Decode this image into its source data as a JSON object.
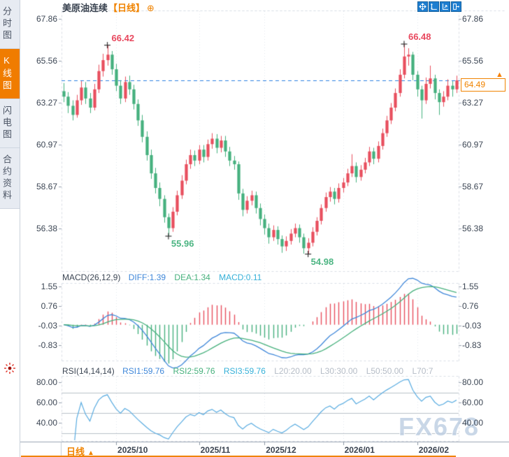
{
  "header": {
    "title": "美原油连续",
    "period": "【日线】",
    "add_icon": "⊕"
  },
  "sidebar": {
    "tabs": [
      {
        "name": "time-chart",
        "label": "分时图",
        "active": false
      },
      {
        "name": "kline-chart",
        "label": "K线图",
        "active": true
      },
      {
        "name": "flash-chart",
        "label": "闪电图",
        "active": false
      },
      {
        "name": "contract-info",
        "label": "合约资料",
        "active": false
      }
    ]
  },
  "toolbar": {
    "buttons": [
      {
        "name": "crosshair-tool-button",
        "icon": "move-icon"
      },
      {
        "name": "y-axis-range-button",
        "icon": "axis-updown-icon"
      },
      {
        "name": "auto-scale-button",
        "icon": "axis-fit-icon"
      },
      {
        "name": "close-chart-button",
        "icon": "exit-icon"
      }
    ]
  },
  "main_chart": {
    "y_labels": [
      67.86,
      65.56,
      63.27,
      60.97,
      58.67,
      56.38
    ],
    "last_price": {
      "value": 64.49,
      "label": "64.49"
    },
    "arrow": "▲",
    "dashed_line_value": 64.49,
    "annotations": [
      {
        "label": "66.42",
        "index": 10,
        "value": 66.42,
        "position": "above",
        "type": "high"
      },
      {
        "label": "55.96",
        "index": 24,
        "value": 55.96,
        "position": "below",
        "type": "low"
      },
      {
        "label": "54.98",
        "index": 56,
        "value": 54.98,
        "position": "below",
        "type": "low"
      },
      {
        "label": "66.48",
        "index": 78,
        "value": 66.48,
        "position": "above",
        "type": "high"
      }
    ]
  },
  "macd": {
    "title": "MACD(26,12,9)",
    "diff": "DIFF:1.39",
    "dea": "DEA:1.34",
    "macd": "MACD:0.11",
    "y_labels": [
      1.55,
      0.76,
      -0.03,
      -0.83
    ]
  },
  "rsi": {
    "title": "RSI(14,14,14)",
    "rsi1": "RSI1:59.76",
    "rsi2": "RSI2:59.76",
    "rsi3": "RSI3:59.76",
    "l20": "L20:20.00",
    "l30": "L30:30.00",
    "l50": "L50:50.00",
    "l70": "L70:7",
    "y_labels": [
      80,
      60,
      40
    ],
    "ref_lines": [
      70,
      50,
      30
    ]
  },
  "x_axis": {
    "labels": [
      "2025/10",
      "2025/11",
      "2025/12",
      "2026/01",
      "2026/02"
    ],
    "tick_indices": [
      12,
      31,
      46,
      64,
      81
    ]
  },
  "footer": {
    "period_label": "日线",
    "arrow": "▲"
  },
  "watermark": "FX678",
  "colors": {
    "up": "#e84f5e",
    "down": "#45b07e",
    "diff": "#3f87d9",
    "dea": "#46b07c",
    "rsi": "#58abe0",
    "dashed": "#2a7fe0",
    "border": "#d9dee6",
    "grid": "#e2e6ec",
    "refline": "#b9c0c9",
    "tick": "#9aa3b0",
    "axisline": "#9aa4b2",
    "sep": "#c5ccd6",
    "cross": "#333333",
    "ann_high": "#e8485e",
    "ann_low": "#4db583",
    "accent": "#f08300"
  },
  "chart_data": {
    "type": "candlestick",
    "symbol": "美原油连续",
    "interval": "日线",
    "ohlc": [
      [
        63.9,
        64.35,
        63.3,
        63.6
      ],
      [
        63.6,
        63.85,
        62.7,
        63.1
      ],
      [
        63.1,
        63.4,
        62.3,
        62.6
      ],
      [
        62.6,
        63.7,
        62.45,
        63.4
      ],
      [
        63.4,
        64.45,
        63.15,
        64.1
      ],
      [
        64.1,
        64.4,
        63.2,
        63.5
      ],
      [
        63.5,
        63.8,
        62.7,
        63.0
      ],
      [
        63.0,
        64.3,
        62.85,
        64.0
      ],
      [
        64.0,
        65.35,
        63.8,
        65.0
      ],
      [
        65.0,
        65.95,
        64.7,
        65.6
      ],
      [
        65.6,
        66.42,
        65.3,
        65.9
      ],
      [
        65.9,
        66.1,
        64.8,
        65.1
      ],
      [
        65.1,
        65.4,
        63.9,
        64.2
      ],
      [
        64.2,
        64.5,
        63.2,
        63.5
      ],
      [
        63.5,
        64.7,
        63.3,
        64.4
      ],
      [
        64.4,
        64.75,
        63.7,
        64.0
      ],
      [
        64.0,
        64.25,
        62.9,
        63.2
      ],
      [
        63.2,
        63.45,
        62.0,
        62.3
      ],
      [
        62.3,
        62.6,
        61.1,
        61.4
      ],
      [
        61.4,
        61.7,
        60.1,
        60.4
      ],
      [
        60.4,
        60.7,
        59.1,
        59.4
      ],
      [
        59.4,
        59.7,
        58.3,
        58.6
      ],
      [
        58.6,
        58.9,
        57.6,
        58.0
      ],
      [
        58.0,
        58.2,
        56.7,
        57.0
      ],
      [
        57.0,
        57.2,
        55.96,
        56.4
      ],
      [
        56.4,
        57.55,
        56.2,
        57.3
      ],
      [
        57.3,
        58.45,
        57.1,
        58.2
      ],
      [
        58.2,
        59.3,
        58.0,
        59.0
      ],
      [
        59.0,
        60.15,
        58.8,
        59.9
      ],
      [
        59.9,
        60.7,
        59.65,
        60.4
      ],
      [
        60.4,
        60.65,
        59.8,
        60.1
      ],
      [
        60.1,
        60.95,
        59.9,
        60.7
      ],
      [
        60.7,
        60.95,
        60.0,
        60.3
      ],
      [
        60.3,
        61.25,
        60.1,
        61.0
      ],
      [
        61.0,
        61.6,
        60.75,
        61.3
      ],
      [
        61.3,
        61.55,
        60.5,
        60.8
      ],
      [
        60.8,
        61.45,
        60.55,
        61.2
      ],
      [
        61.2,
        61.45,
        60.3,
        60.6
      ],
      [
        60.6,
        60.85,
        59.8,
        60.1
      ],
      [
        60.1,
        60.35,
        59.6,
        59.9
      ],
      [
        59.9,
        60.05,
        57.95,
        58.3
      ],
      [
        58.3,
        58.55,
        57.05,
        57.4
      ],
      [
        57.4,
        58.15,
        57.2,
        57.9
      ],
      [
        57.9,
        58.45,
        57.65,
        58.2
      ],
      [
        58.2,
        58.4,
        57.2,
        57.5
      ],
      [
        57.5,
        57.75,
        56.55,
        56.9
      ],
      [
        56.9,
        57.15,
        56.05,
        56.4
      ],
      [
        56.4,
        56.65,
        55.55,
        55.9
      ],
      [
        55.9,
        56.55,
        55.7,
        56.3
      ],
      [
        56.3,
        56.5,
        55.5,
        55.8
      ],
      [
        55.8,
        56.0,
        55.05,
        55.4
      ],
      [
        55.4,
        55.95,
        55.15,
        55.7
      ],
      [
        55.7,
        56.35,
        55.5,
        56.1
      ],
      [
        56.1,
        56.65,
        55.9,
        56.4
      ],
      [
        56.4,
        56.6,
        55.6,
        55.9
      ],
      [
        55.9,
        56.1,
        55.0,
        55.3
      ],
      [
        55.3,
        55.85,
        54.98,
        55.6
      ],
      [
        55.6,
        56.45,
        55.4,
        56.2
      ],
      [
        56.2,
        57.0,
        56.0,
        56.8
      ],
      [
        56.8,
        57.7,
        56.6,
        57.5
      ],
      [
        57.5,
        58.35,
        57.3,
        58.1
      ],
      [
        58.1,
        58.65,
        57.85,
        58.4
      ],
      [
        58.4,
        58.6,
        57.7,
        58.0
      ],
      [
        58.0,
        58.85,
        57.8,
        58.6
      ],
      [
        58.6,
        59.15,
        58.35,
        58.9
      ],
      [
        58.9,
        59.65,
        58.7,
        59.4
      ],
      [
        59.4,
        60.45,
        59.2,
        59.8
      ],
      [
        59.8,
        60.0,
        58.9,
        59.2
      ],
      [
        59.2,
        59.85,
        59.0,
        59.6
      ],
      [
        59.6,
        60.25,
        59.4,
        60.0
      ],
      [
        60.0,
        60.85,
        59.8,
        60.6
      ],
      [
        60.6,
        60.8,
        59.9,
        60.2
      ],
      [
        60.2,
        61.15,
        60.0,
        60.9
      ],
      [
        60.9,
        61.85,
        60.7,
        61.6
      ],
      [
        61.6,
        62.55,
        61.4,
        62.3
      ],
      [
        62.3,
        63.25,
        62.1,
        63.0
      ],
      [
        63.0,
        64.05,
        62.8,
        63.8
      ],
      [
        63.8,
        65.1,
        63.6,
        64.8
      ],
      [
        64.8,
        66.48,
        64.6,
        65.8
      ],
      [
        65.8,
        66.25,
        65.3,
        65.9
      ],
      [
        65.9,
        66.05,
        64.5,
        64.8
      ],
      [
        64.8,
        65.0,
        63.6,
        64.0
      ],
      [
        64.0,
        64.2,
        62.4,
        63.4
      ],
      [
        63.4,
        64.65,
        63.2,
        64.3
      ],
      [
        64.3,
        65.3,
        64.05,
        64.6
      ],
      [
        64.6,
        64.8,
        63.45,
        63.8
      ],
      [
        63.8,
        64.0,
        62.6,
        63.3
      ],
      [
        63.3,
        63.9,
        63.05,
        63.6
      ],
      [
        63.6,
        64.55,
        63.4,
        64.2
      ],
      [
        64.2,
        64.45,
        63.6,
        64.0
      ],
      [
        64.0,
        64.75,
        63.8,
        64.49
      ]
    ],
    "indicators": {
      "macd_params": [
        26,
        12,
        9
      ],
      "rsi_periods": [
        14,
        14,
        14
      ]
    }
  }
}
